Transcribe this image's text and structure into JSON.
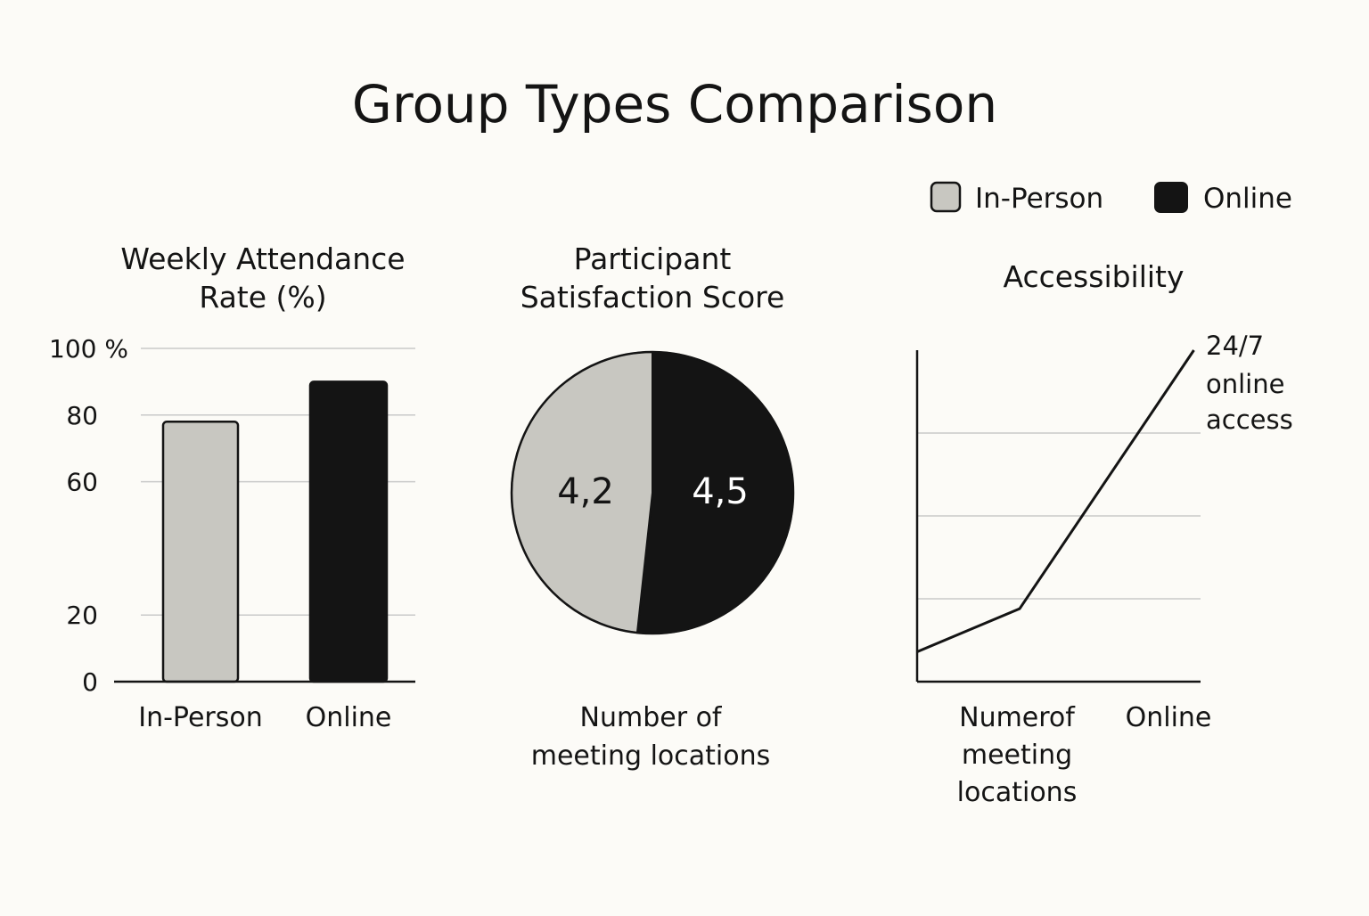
{
  "title": "Group Types Comparison",
  "colors": {
    "in_person": "#c8c7c1",
    "online": "#141414",
    "grid": "#c9c9c9",
    "text": "#141414"
  },
  "legend": {
    "placement": "top-right",
    "items": [
      {
        "label": "In-Person",
        "color": "#c8c7c1"
      },
      {
        "label": "Online",
        "color": "#141414"
      }
    ]
  },
  "chart_data": [
    {
      "type": "bar",
      "title_lines": [
        "Weekly Attendance",
        "Rate (%)"
      ],
      "categories": [
        "In-Person",
        "Online"
      ],
      "values": [
        78,
        90
      ],
      "ylim": [
        0,
        100
      ],
      "yticks": [
        0,
        20,
        60,
        80,
        100
      ],
      "ytick_labels": [
        "0",
        "20",
        "60",
        "80",
        "100 %"
      ],
      "grid": true
    },
    {
      "type": "pie",
      "title_lines": [
        "Participant",
        "Satisfaction Score"
      ],
      "labels": [
        "In-Person",
        "Online"
      ],
      "values": [
        4.2,
        4.5
      ],
      "value_labels": [
        "4,2",
        "4,5"
      ],
      "caption_lines": [
        "Number of",
        "meeting locations"
      ]
    },
    {
      "type": "line",
      "title_lines": [
        "Accessibility"
      ],
      "categories": [
        "Numerof meeting locations",
        "Online"
      ],
      "category_label_lines": [
        [
          "Numerof",
          "meeting",
          "locations"
        ],
        [
          "Online"
        ]
      ],
      "x": [
        0,
        1,
        2.7
      ],
      "y": [
        9,
        22,
        100
      ],
      "ylim": [
        0,
        100
      ],
      "grid": true,
      "annotation_lines": [
        "24/7",
        "online",
        "access"
      ]
    }
  ]
}
